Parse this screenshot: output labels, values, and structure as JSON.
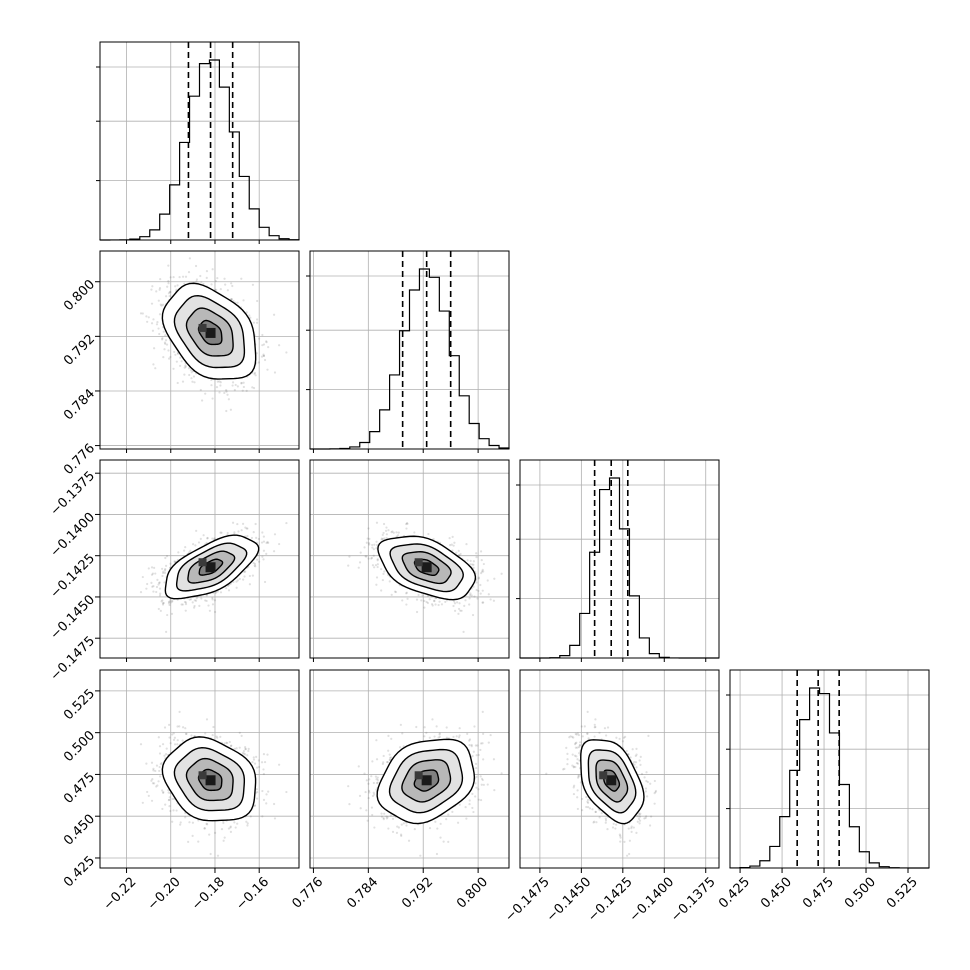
{
  "chart_data": {
    "type": "corner",
    "parameters": [
      {
        "mean": -0.182,
        "sigma": 0.0105,
        "quantiles": [
          -0.192,
          -0.182,
          -0.172
        ],
        "range": [
          -0.232,
          -0.142
        ],
        "ticks": [
          -0.22,
          -0.2,
          -0.18,
          -0.16
        ]
      },
      {
        "mean": 0.7925,
        "sigma": 0.0035,
        "quantiles": [
          0.789,
          0.7925,
          0.796
        ],
        "range": [
          0.7755,
          0.8045
        ],
        "ticks": [
          0.776,
          0.784,
          0.792,
          0.8
        ]
      },
      {
        "mean": -0.1432,
        "sigma": 0.00095,
        "quantiles": [
          -0.1442,
          -0.1432,
          -0.1422
        ],
        "range": [
          -0.1487,
          -0.1367
        ],
        "ticks": [
          -0.1475,
          -0.145,
          -0.1425,
          -0.14,
          -0.1375
        ]
      },
      {
        "mean": 0.4715,
        "sigma": 0.0125,
        "quantiles": [
          0.459,
          0.4715,
          0.484
        ],
        "range": [
          0.419,
          0.5375
        ],
        "ticks": [
          0.425,
          0.45,
          0.475,
          0.5,
          0.525
        ]
      }
    ],
    "correlations": [
      [
        1.0,
        -0.35,
        0.6,
        -0.2
      ],
      [
        -0.35,
        1.0,
        -0.45,
        0.25
      ],
      [
        0.6,
        -0.45,
        1.0,
        -0.4
      ],
      [
        -0.2,
        0.25,
        -0.4,
        1.0
      ]
    ],
    "tick_labels": {
      "p0": [
        "−0.22",
        "−0.20",
        "−0.18",
        "−0.16"
      ],
      "p1": [
        "0.776",
        "0.784",
        "0.792",
        "0.800"
      ],
      "p2": [
        "−0.1475",
        "−0.1450",
        "−0.1425",
        "−0.1400",
        "−0.1375"
      ],
      "p3": [
        "0.425",
        "0.450",
        "0.475",
        "0.500",
        "0.525"
      ]
    },
    "histogram_bins": 20,
    "grid": true,
    "contour_levels_sigma": [
      0.5,
      1.0,
      1.5,
      2.0
    ],
    "colors": {
      "line": "#000000",
      "scatter": "#555555",
      "grid": "#b0b0b0"
    }
  }
}
